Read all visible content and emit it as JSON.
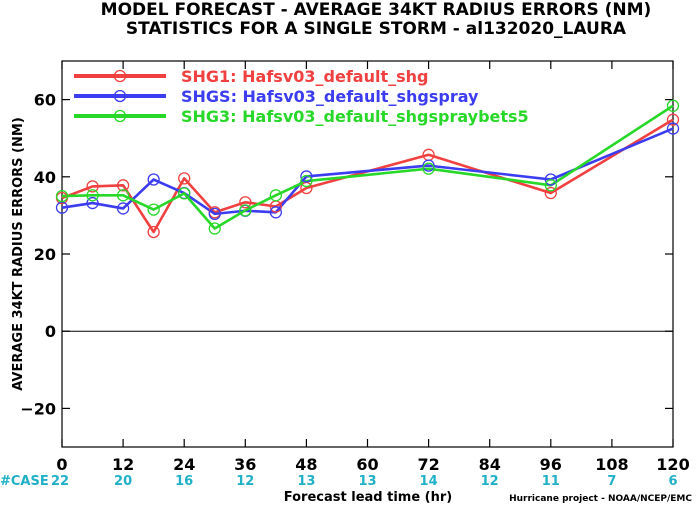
{
  "chart_data": {
    "type": "line",
    "title": "MODEL FORECAST - AVERAGE 34KT RADIUS ERRORS (NM)",
    "subtitle": "STATISTICS FOR A SINGLE STORM - al132020_LAURA",
    "xlabel": "Forecast lead time (hr)",
    "ylabel": "AVERAGE 34KT RADIUS ERRORS (NM)",
    "xlim": [
      0,
      120
    ],
    "ylim": [
      -30,
      70
    ],
    "xticks": [
      0,
      12,
      24,
      36,
      48,
      60,
      72,
      84,
      96,
      108,
      120
    ],
    "yticks": [
      -20,
      0,
      20,
      40,
      60
    ],
    "zero_line": true,
    "case_label": "#CASE",
    "case_counts": [
      22,
      20,
      16,
      12,
      13,
      13,
      14,
      12,
      11,
      7,
      6
    ],
    "credit": "Hurricane project - NOAA/NCEP/EMC",
    "legend_position": "top-left",
    "series": [
      {
        "name": "SHG1: Hafsv03_default_shg",
        "color": "#f04040",
        "x": [
          0,
          6,
          12,
          18,
          24,
          30,
          36,
          42,
          48,
          72,
          96,
          120
        ],
        "values": [
          34.5,
          37.5,
          37.8,
          25.7,
          39.6,
          30.8,
          33.4,
          32.3,
          37.1,
          45.7,
          35.8,
          54.8
        ]
      },
      {
        "name": "SHGS: Hafsv03_default_shgspray",
        "color": "#3c3cf0",
        "x": [
          0,
          6,
          12,
          18,
          24,
          30,
          36,
          42,
          48,
          72,
          96,
          120
        ],
        "values": [
          32.0,
          33.2,
          31.8,
          39.3,
          35.8,
          30.4,
          31.2,
          30.8,
          40.1,
          42.9,
          39.3,
          52.5
        ]
      },
      {
        "name": "SHG3: Hafsv03_default_shgspraybets5",
        "color": "#28d828",
        "x": [
          0,
          6,
          12,
          18,
          24,
          30,
          36,
          42,
          48,
          72,
          96,
          120
        ],
        "values": [
          35.0,
          35.2,
          35.2,
          31.5,
          35.7,
          26.6,
          31.3,
          35.2,
          38.9,
          42.1,
          37.8,
          58.4
        ]
      }
    ]
  }
}
